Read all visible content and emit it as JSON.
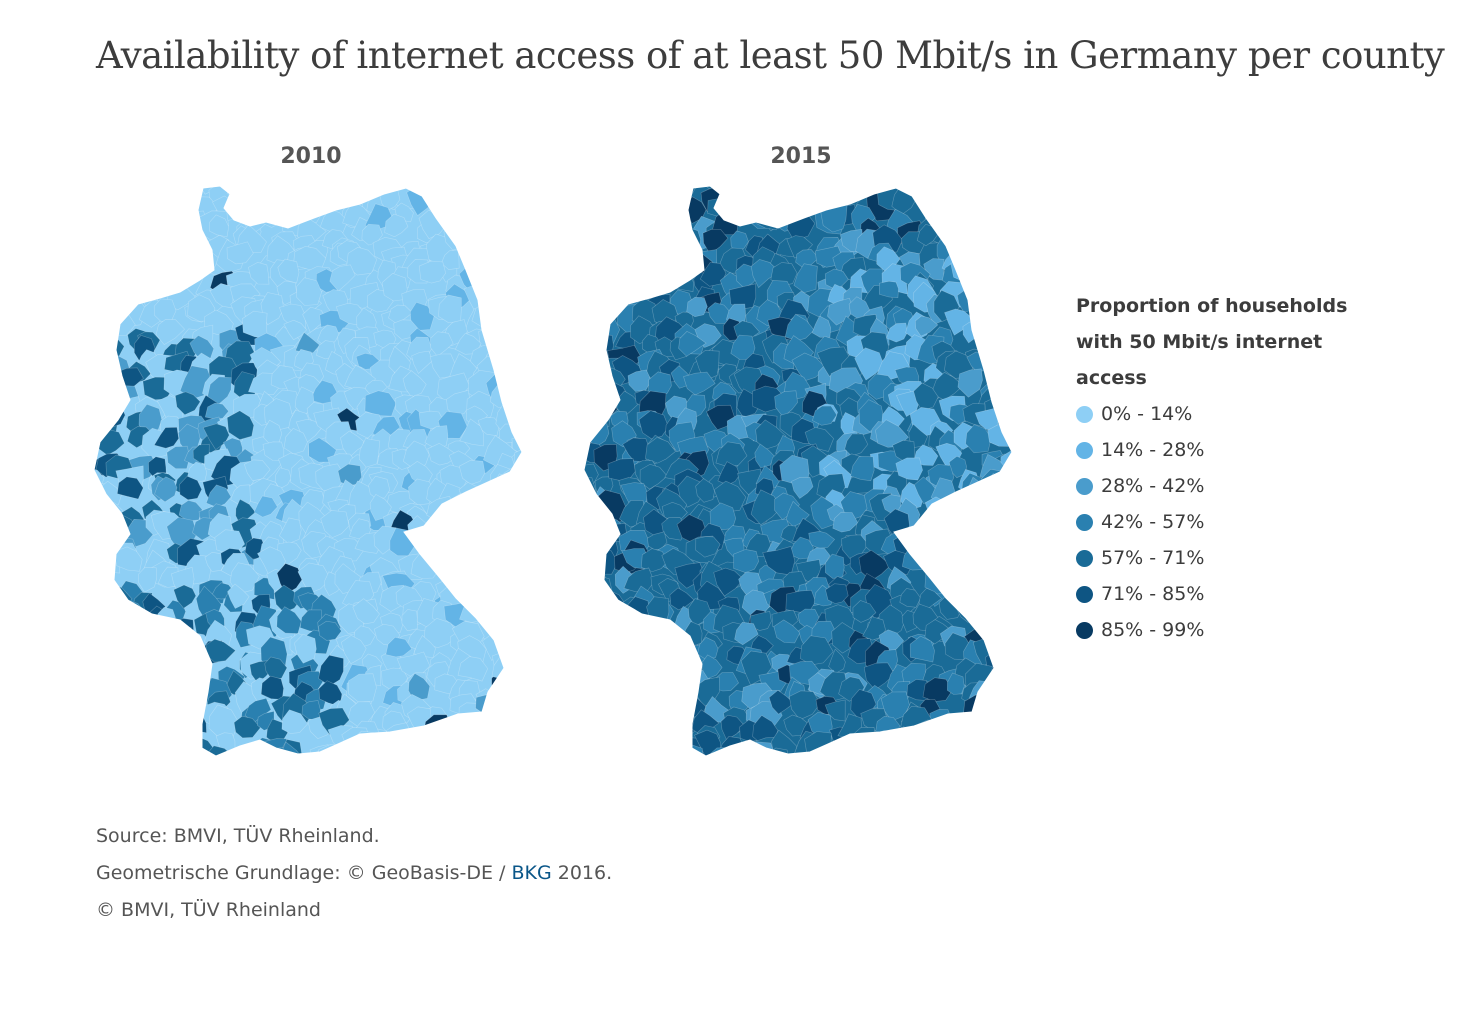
{
  "title": "Availability of internet access of at least 50 Mbit/s in Germany per county",
  "maps": [
    {
      "year": "2010",
      "base_color": "#8ecff5"
    },
    {
      "year": "2015",
      "base_color": "#1a6b97"
    }
  ],
  "legend": {
    "title": "Proportion of households with 50 Mbit/s internet access",
    "items": [
      {
        "label": "0% - 14%",
        "color": "#8ecff5"
      },
      {
        "label": "14% - 28%",
        "color": "#63b4e6"
      },
      {
        "label": "28% - 42%",
        "color": "#4a9ccc"
      },
      {
        "label": "42% - 57%",
        "color": "#2a80b0"
      },
      {
        "label": "57% - 71%",
        "color": "#1a6b97"
      },
      {
        "label": "71% - 85%",
        "color": "#0e5583"
      },
      {
        "label": "85% - 99%",
        "color": "#083a62"
      }
    ]
  },
  "source": {
    "line1": "Source: BMVI, TÜV Rheinland.",
    "line2_pre": "Geometrische Grundlage: © GeoBasis-DE / ",
    "line2_link": "BKG",
    "line2_post": " 2016.",
    "line3": "© BMVI, TÜV Rheinland"
  }
}
